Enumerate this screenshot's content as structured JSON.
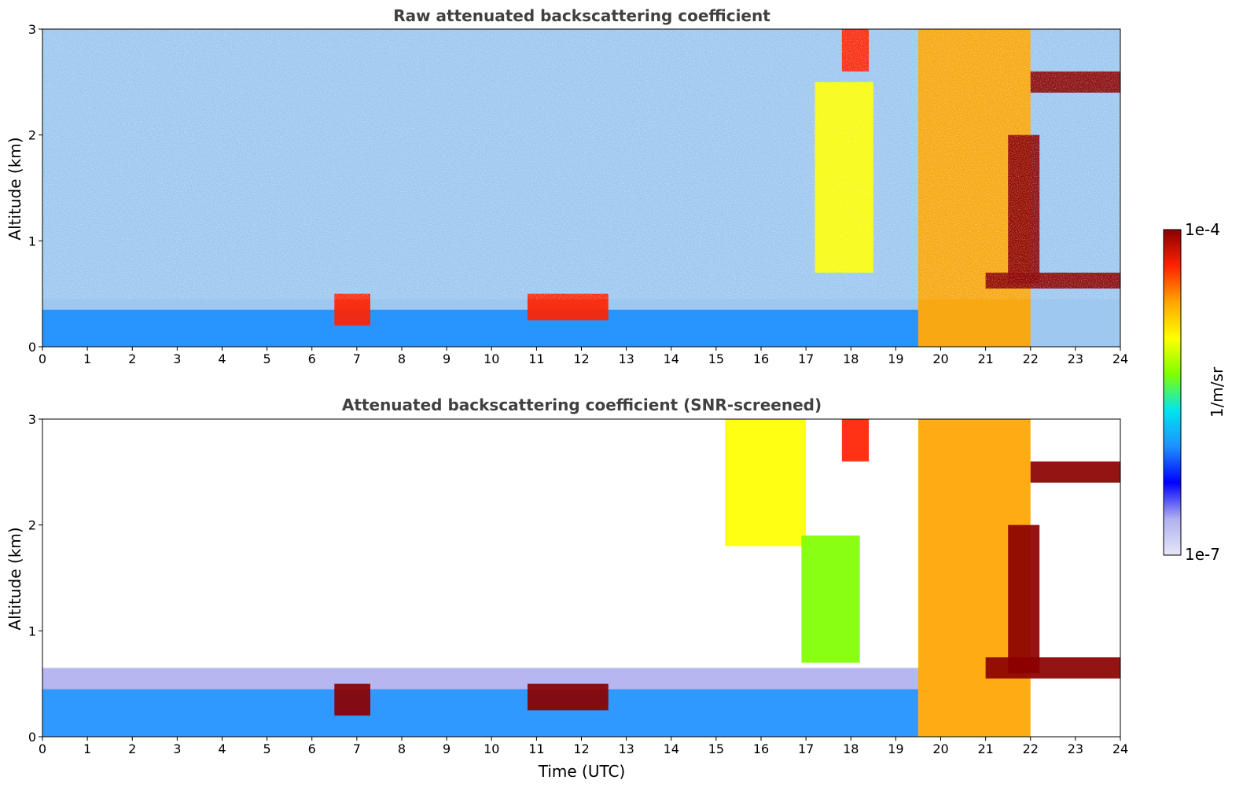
{
  "chart_data": [
    {
      "type": "heatmap",
      "title": "Raw attenuated backscattering coefficient",
      "xlabel": "",
      "ylabel": "Altitude (km)",
      "xlim": [
        0,
        24
      ],
      "ylim": [
        0,
        3
      ],
      "xticks": [
        "0",
        "1",
        "2",
        "3",
        "4",
        "5",
        "6",
        "7",
        "8",
        "9",
        "10",
        "11",
        "12",
        "13",
        "14",
        "15",
        "16",
        "17",
        "18",
        "19",
        "20",
        "21",
        "22",
        "23",
        "24"
      ],
      "yticks": [
        "0",
        "1",
        "2",
        "3"
      ],
      "grid": false,
      "features": [
        {
          "time": [
            0,
            19.5
          ],
          "altitude": [
            0,
            0.35
          ],
          "value": "1e-6"
        },
        {
          "time": [
            6.5,
            7.3
          ],
          "altitude": [
            0.2,
            0.5
          ],
          "value": "5e-5"
        },
        {
          "time": [
            10.8,
            12.6
          ],
          "altitude": [
            0.25,
            0.5
          ],
          "value": "5e-5"
        },
        {
          "time": [
            17.2,
            18.5
          ],
          "altitude": [
            0.7,
            2.5
          ],
          "value": "1e-5"
        },
        {
          "time": [
            17.8,
            18.4
          ],
          "altitude": [
            2.6,
            3.0
          ],
          "value": "5e-5"
        },
        {
          "time": [
            19.5,
            22.0
          ],
          "altitude": [
            0,
            3.0
          ],
          "value": "3e-5"
        },
        {
          "time": [
            21.5,
            22.2
          ],
          "altitude": [
            0.6,
            2.0
          ],
          "value": "8e-5"
        },
        {
          "time": [
            22.0,
            24.0
          ],
          "altitude": [
            2.4,
            2.6
          ],
          "value": "1e-4"
        },
        {
          "time": [
            21.0,
            24.0
          ],
          "altitude": [
            0.55,
            0.7
          ],
          "value": "8e-5"
        }
      ]
    },
    {
      "type": "heatmap",
      "title": "Attenuated backscattering coefficient (SNR-screened)",
      "xlabel": "Time (UTC)",
      "ylabel": "Altitude (km)",
      "xlim": [
        0,
        24
      ],
      "ylim": [
        0,
        3
      ],
      "xticks": [
        "0",
        "1",
        "2",
        "3",
        "4",
        "5",
        "6",
        "7",
        "8",
        "9",
        "10",
        "11",
        "12",
        "13",
        "14",
        "15",
        "16",
        "17",
        "18",
        "19",
        "20",
        "21",
        "22",
        "23",
        "24"
      ],
      "yticks": [
        "0",
        "1",
        "2",
        "3"
      ],
      "grid": false,
      "features": [
        {
          "time": [
            0,
            19.5
          ],
          "altitude": [
            0,
            0.45
          ],
          "value": "1e-6"
        },
        {
          "time": [
            0,
            19.5
          ],
          "altitude": [
            0.45,
            0.65
          ],
          "value": "2e-7"
        },
        {
          "time": [
            6.5,
            7.3
          ],
          "altitude": [
            0.2,
            0.5
          ],
          "value": "1e-4"
        },
        {
          "time": [
            10.8,
            12.6
          ],
          "altitude": [
            0.25,
            0.5
          ],
          "value": "1e-4"
        },
        {
          "time": [
            15.2,
            17.0
          ],
          "altitude": [
            1.8,
            3.0
          ],
          "value": "8e-6"
        },
        {
          "time": [
            16.9,
            18.2
          ],
          "altitude": [
            0.7,
            1.9
          ],
          "value": "5e-6"
        },
        {
          "time": [
            17.8,
            18.4
          ],
          "altitude": [
            2.6,
            3.0
          ],
          "value": "5e-5"
        },
        {
          "time": [
            19.5,
            22.0
          ],
          "altitude": [
            0,
            3.0
          ],
          "value": "3e-5"
        },
        {
          "time": [
            21.5,
            22.2
          ],
          "altitude": [
            0.6,
            2.0
          ],
          "value": "8e-5"
        },
        {
          "time": [
            22.0,
            24.0
          ],
          "altitude": [
            2.4,
            2.6
          ],
          "value": "1e-4"
        },
        {
          "time": [
            21.0,
            24.0
          ],
          "altitude": [
            0.55,
            0.75
          ],
          "value": "1e-4"
        }
      ]
    }
  ],
  "colorbar": {
    "label": "1/m/sr",
    "max_label": "1e-4",
    "min_label": "1e-7",
    "scale": "log",
    "colors": [
      "#e6e6fa",
      "#b0b0f0",
      "#0000ff",
      "#1e90ff",
      "#00e5ee",
      "#7fff00",
      "#ffff00",
      "#ffa500",
      "#ff2200",
      "#8b0000"
    ]
  }
}
